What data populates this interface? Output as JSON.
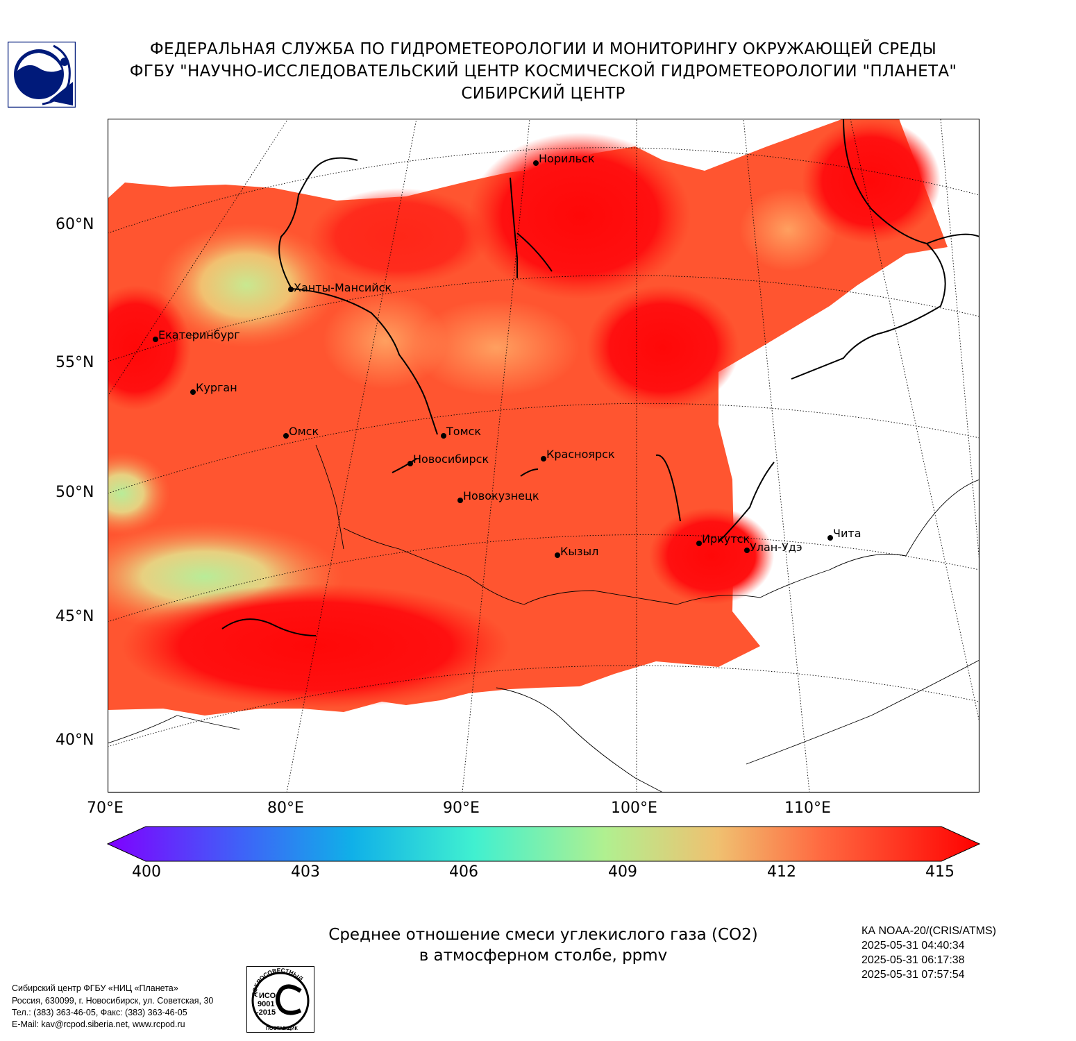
{
  "header": {
    "line1": "ФЕДЕРАЛЬНАЯ СЛУЖБА ПО ГИДРОМЕТЕОРОЛОГИИ И МОНИТОРИНГУ ОКРУЖАЮЩЕЙ СРЕДЫ",
    "line2": "ФГБУ \"НАУЧНО-ИССЛЕДОВАТЕЛЬСКИЙ ЦЕНТР КОСМИЧЕСКОЙ ГИДРОМЕТЕОРОЛОГИИ \"ПЛАНЕТА\"",
    "line3": "СИБИРСКИЙ ЦЕНТР"
  },
  "map": {
    "lat_labels": [
      "60°N",
      "55°N",
      "50°N",
      "45°N",
      "40°N"
    ],
    "lon_labels": [
      "70°E",
      "80°E",
      "90°E",
      "100°E",
      "110°E"
    ],
    "cities": [
      {
        "name": "Норильск"
      },
      {
        "name": "Ханты-Мансийск"
      },
      {
        "name": "Екатеринбург"
      },
      {
        "name": "Курган"
      },
      {
        "name": "Омск"
      },
      {
        "name": "Томск"
      },
      {
        "name": "Новосибирск"
      },
      {
        "name": "Красноярск"
      },
      {
        "name": "Новокузнецк"
      },
      {
        "name": "Иркутск"
      },
      {
        "name": "Улан-Удэ"
      },
      {
        "name": "Чита"
      },
      {
        "name": "Кызыл"
      }
    ]
  },
  "colorbar": {
    "min": 400,
    "max": 415,
    "tick_labels": [
      "400",
      "403",
      "406",
      "409",
      "412",
      "415"
    ]
  },
  "caption": {
    "line1": "Среднее отношение смеси углекислого газа (CO2)",
    "line2": "в атмосферном столбе, ppmv"
  },
  "satellite": {
    "name": "КА NOAA-20/(CRIS/ATMS)",
    "times": [
      "2025-05-31 04:40:34",
      "2025-05-31 06:17:38",
      "2025-05-31 07:57:54"
    ]
  },
  "contacts": {
    "line1": "Сибирский центр ФГБУ «НИЦ «Планета»",
    "line2": "Россия, 630099, г. Новосибирск, ул. Советская, 30",
    "line3": "Тел.: (383) 363-46-05, Факс: (383) 363-46-05",
    "line4": "E-Mail: kav@rcpod.siberia.net, www.rcpod.ru"
  },
  "certification": {
    "arc_top": "ДОБРОСОВЕСТНЫЙ",
    "arc_bottom": "ПОСТАВЩИК",
    "line1": "ИСО",
    "line2": "9001",
    "line3": "-2015"
  },
  "colors": {
    "field_high": "#ff0a0a",
    "field_mid": "#ff6a3a",
    "field_low": "#b8e890"
  }
}
